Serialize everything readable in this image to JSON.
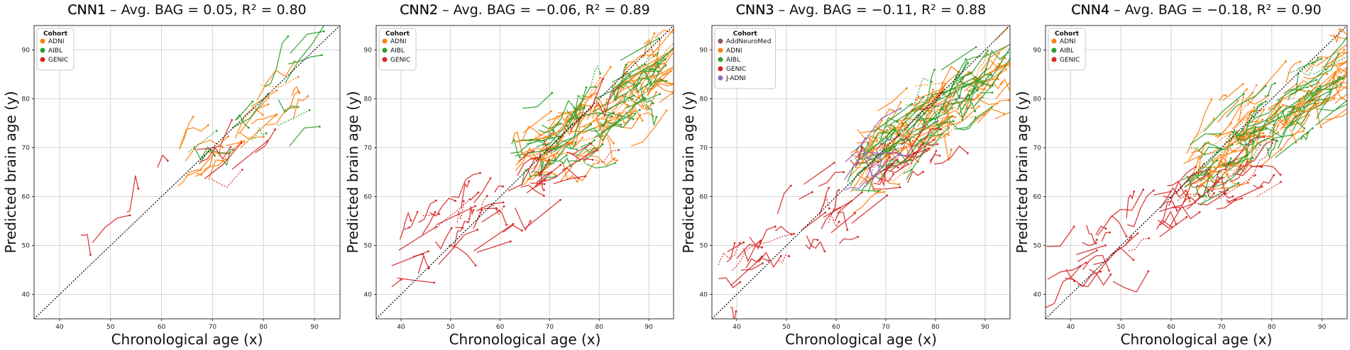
{
  "chart_data": [
    {
      "type": "line",
      "title_model": "CNN1",
      "title_rest": " – Avg. BAG = 0.05, R² = 0.80",
      "xlabel": "Chronological age (x)",
      "ylabel": "Predicted brain age (y)",
      "xlim": [
        35,
        95
      ],
      "ylim": [
        35,
        95
      ],
      "xticks": [
        40,
        50,
        60,
        70,
        80,
        90
      ],
      "yticks": [
        40,
        50,
        60,
        70,
        80,
        90
      ],
      "xtick_labels": [
        "40",
        "50",
        "60",
        "70",
        "80",
        "90"
      ],
      "ytick_labels": [
        "40",
        "50",
        "60",
        "70",
        "80",
        "90"
      ],
      "grid": true,
      "reference_line": "y = x",
      "legend_title": "Cohort",
      "legend_position": "top-left",
      "series": [
        {
          "name": "ADNI",
          "color": "#ff7f0e",
          "n_subjects": 25,
          "x_range": [
            63,
            86
          ],
          "slope": 0.7,
          "intercept": 21,
          "noise": 4
        },
        {
          "name": "AIBL",
          "color": "#2ca02c",
          "n_subjects": 15,
          "x_range": [
            65,
            86
          ],
          "slope": 0.7,
          "intercept": 21,
          "noise": 4
        },
        {
          "name": "GENIC",
          "color": "#d62728",
          "n_subjects": 10,
          "x_range": [
            43,
            80
          ],
          "slope": 0.75,
          "intercept": 15,
          "noise": 5
        }
      ]
    },
    {
      "type": "line",
      "title_model": "CNN2",
      "title_rest": " – Avg. BAG = −0.06, R² = 0.89",
      "xlabel": "Chronological age (x)",
      "ylabel": "Predicted brain age (y)",
      "xlim": [
        35,
        95
      ],
      "ylim": [
        35,
        95
      ],
      "xticks": [
        40,
        50,
        60,
        70,
        80,
        90
      ],
      "yticks": [
        40,
        50,
        60,
        70,
        80,
        90
      ],
      "xtick_labels": [
        "40",
        "50",
        "60",
        "70",
        "80",
        "90"
      ],
      "ytick_labels": [
        "40",
        "50",
        "60",
        "70",
        "80",
        "90"
      ],
      "grid": true,
      "reference_line": "y = x",
      "legend_title": "Cohort",
      "legend_position": "top-left",
      "series": [
        {
          "name": "ADNI",
          "color": "#ff7f0e",
          "n_subjects": 110,
          "x_range": [
            62,
            93
          ],
          "slope": 0.62,
          "intercept": 27,
          "noise": 4
        },
        {
          "name": "AIBL",
          "color": "#2ca02c",
          "n_subjects": 75,
          "x_range": [
            62,
            90
          ],
          "slope": 0.62,
          "intercept": 27,
          "noise": 4
        },
        {
          "name": "GENIC",
          "color": "#d62728",
          "n_subjects": 60,
          "x_range": [
            38,
            80
          ],
          "slope": 0.62,
          "intercept": 22,
          "noise": 4
        }
      ]
    },
    {
      "type": "line",
      "title_model": "CNN3",
      "title_rest": " – Avg. BAG = −0.11, R² = 0.88",
      "xlabel": "Chronological age (x)",
      "ylabel": "Predicted brain age (y)",
      "xlim": [
        35,
        95
      ],
      "ylim": [
        35,
        95
      ],
      "xticks": [
        40,
        50,
        60,
        70,
        80,
        90
      ],
      "yticks": [
        40,
        50,
        60,
        70,
        80,
        90
      ],
      "xtick_labels": [
        "40",
        "50",
        "60",
        "70",
        "80",
        "90"
      ],
      "ytick_labels": [
        "40",
        "50",
        "60",
        "70",
        "80",
        "90"
      ],
      "grid": true,
      "reference_line": "y = x",
      "legend_title": "Cohort",
      "legend_position": "top-left",
      "series": [
        {
          "name": "AddNeuroMed",
          "color": "#8c564b",
          "n_subjects": 4,
          "x_range": [
            65,
            80
          ],
          "slope": 0.65,
          "intercept": 25,
          "noise": 4
        },
        {
          "name": "ADNI",
          "color": "#ff7f0e",
          "n_subjects": 110,
          "x_range": [
            62,
            93
          ],
          "slope": 0.65,
          "intercept": 25,
          "noise": 4
        },
        {
          "name": "AIBL",
          "color": "#2ca02c",
          "n_subjects": 80,
          "x_range": [
            62,
            90
          ],
          "slope": 0.65,
          "intercept": 25,
          "noise": 4
        },
        {
          "name": "GENIC",
          "color": "#d62728",
          "n_subjects": 60,
          "x_range": [
            36,
            80
          ],
          "slope": 0.62,
          "intercept": 21,
          "noise": 4
        },
        {
          "name": "J-ADNI",
          "color": "#9467bd",
          "n_subjects": 10,
          "x_range": [
            60,
            68
          ],
          "slope": 0.6,
          "intercept": 26,
          "noise": 3
        }
      ]
    },
    {
      "type": "line",
      "title_model": "CNN4",
      "title_rest": " – Avg. BAG = −0.18, R² = 0.90",
      "xlabel": "Chronological age (x)",
      "ylabel": "Predicted brain age (y)",
      "xlim": [
        35,
        95
      ],
      "ylim": [
        35,
        95
      ],
      "xticks": [
        40,
        50,
        60,
        70,
        80,
        90
      ],
      "yticks": [
        40,
        50,
        60,
        70,
        80,
        90
      ],
      "xtick_labels": [
        "40",
        "50",
        "60",
        "70",
        "80",
        "90"
      ],
      "ytick_labels": [
        "40",
        "50",
        "60",
        "70",
        "80",
        "90"
      ],
      "grid": true,
      "reference_line": "y = x",
      "legend_title": "Cohort",
      "legend_position": "top-left",
      "series": [
        {
          "name": "ADNI",
          "color": "#ff7f0e",
          "n_subjects": 120,
          "x_range": [
            62,
            94
          ],
          "slope": 0.7,
          "intercept": 20,
          "noise": 4
        },
        {
          "name": "AIBL",
          "color": "#2ca02c",
          "n_subjects": 80,
          "x_range": [
            62,
            91
          ],
          "slope": 0.7,
          "intercept": 20,
          "noise": 4
        },
        {
          "name": "GENIC",
          "color": "#d62728",
          "n_subjects": 60,
          "x_range": [
            35,
            78
          ],
          "slope": 0.55,
          "intercept": 24,
          "noise": 3
        }
      ]
    }
  ]
}
